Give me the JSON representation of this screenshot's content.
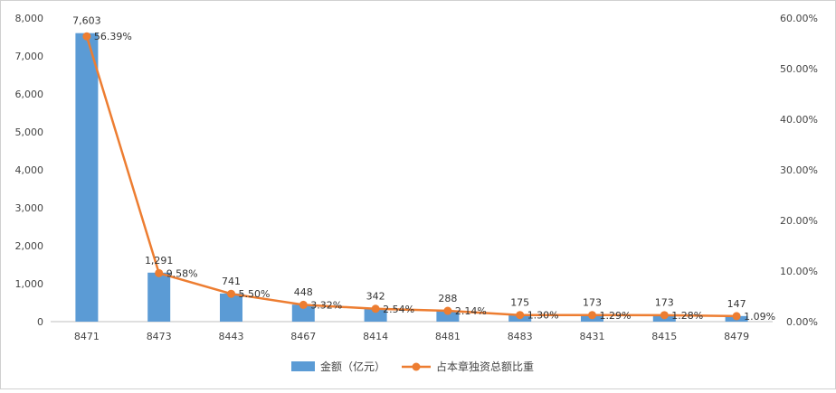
{
  "chart_data": {
    "type": "bar",
    "categories": [
      "8471",
      "8473",
      "8443",
      "8467",
      "8414",
      "8481",
      "8483",
      "8431",
      "8415",
      "8479"
    ],
    "series": [
      {
        "name": "金额（亿元）",
        "type": "bar",
        "axis": "left",
        "values": [
          7603,
          1291,
          741,
          448,
          342,
          288,
          175,
          173,
          173,
          147
        ],
        "labels": [
          "7,603",
          "1,291",
          "741",
          "448",
          "342",
          "288",
          "175",
          "173",
          "173",
          "147"
        ],
        "color": "#5b9bd5"
      },
      {
        "name": "占本章独资总额比重",
        "type": "line",
        "axis": "right",
        "values": [
          56.39,
          9.58,
          5.5,
          3.32,
          2.54,
          2.14,
          1.3,
          1.29,
          1.28,
          1.09
        ],
        "labels": [
          "56.39%",
          "9.58%",
          "5.50%",
          "3.32%",
          "2.54%",
          "2.14%",
          "1.30%",
          "1.29%",
          "1.28%",
          "1.09%"
        ],
        "color": "#ed7d31"
      }
    ],
    "y_left": {
      "range": [
        0,
        8000
      ],
      "ticks": [
        0,
        1000,
        2000,
        3000,
        4000,
        5000,
        6000,
        7000,
        8000
      ],
      "tick_labels": [
        "0",
        "1,000",
        "2,000",
        "3,000",
        "4,000",
        "5,000",
        "6,000",
        "7,000",
        "8,000"
      ]
    },
    "y_right": {
      "range": [
        0,
        60
      ],
      "ticks": [
        0,
        10,
        20,
        30,
        40,
        50,
        60
      ],
      "tick_labels": [
        "0.00%",
        "10.00%",
        "20.00%",
        "30.00%",
        "40.00%",
        "50.00%",
        "60.00%"
      ]
    },
    "grid": false,
    "legend": "bottom"
  }
}
